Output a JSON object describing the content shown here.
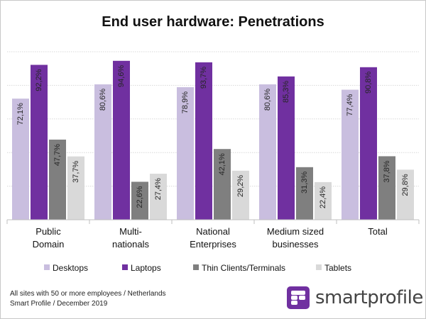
{
  "chart_data": {
    "type": "bar",
    "title": "End user hardware: Penetrations",
    "categories": [
      [
        "Public",
        "Domain"
      ],
      [
        "Multi-",
        "nationals"
      ],
      [
        "National",
        "Enterprises"
      ],
      [
        "Medium sized",
        "businesses"
      ],
      [
        "Total"
      ]
    ],
    "series": [
      {
        "name": "Desktops",
        "color": "#c9bedf",
        "values": [
          72.1,
          80.6,
          78.9,
          80.6,
          77.4
        ]
      },
      {
        "name": "Laptops",
        "color": "#7030a0",
        "values": [
          92.2,
          94.6,
          93.7,
          85.3,
          90.8
        ]
      },
      {
        "name": "Thin Clients/Terminals",
        "color": "#7f7f7f",
        "values": [
          47.7,
          22.6,
          42.1,
          31.3,
          37.8
        ]
      },
      {
        "name": "Tablets",
        "color": "#d9d9d9",
        "values": [
          37.7,
          27.4,
          29.2,
          22.4,
          29.8
        ]
      }
    ],
    "value_labels": [
      [
        "72,1%",
        "80,6%",
        "78,9%",
        "80,6%",
        "77,4%"
      ],
      [
        "92,2%",
        "94,6%",
        "93,7%",
        "85,3%",
        "90,8%"
      ],
      [
        "47,7%",
        "22,6%",
        "42,1%",
        "31,3%",
        "37,8%"
      ],
      [
        "37,7%",
        "27,4%",
        "29,2%",
        "22,4%",
        "29,8%"
      ]
    ],
    "ylim": [
      0,
      100
    ],
    "y_gridlines": [
      20,
      40,
      60,
      80,
      100
    ],
    "grid": true,
    "legend_position": "bottom"
  },
  "footer": {
    "line1": "All sites with 50 or more employees / Netherlands",
    "line2": "Smart Profile / December 2019"
  },
  "logo": {
    "text": "smartprofile",
    "icon": "smartprofile-logo-icon",
    "color": "#7030a0"
  }
}
